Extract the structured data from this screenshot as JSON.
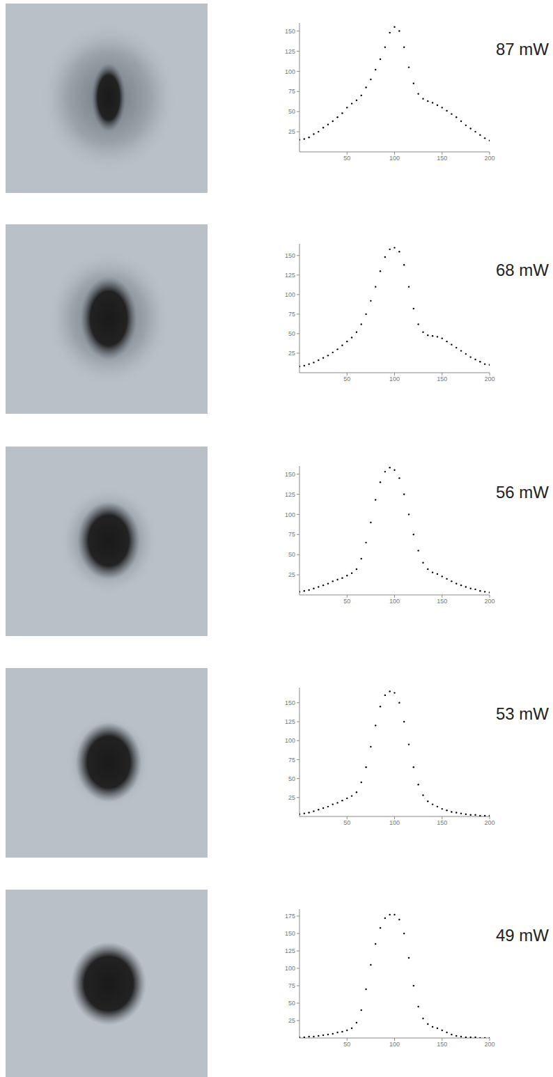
{
  "chart_data": [
    {
      "type": "scatter",
      "title": "87 mW",
      "xlim": [
        0,
        200
      ],
      "xticks": [
        50,
        100,
        150,
        200
      ],
      "ylim": [
        0,
        160
      ],
      "yticks": [
        25,
        50,
        75,
        100,
        125,
        150
      ],
      "grid": false,
      "color": "#000000",
      "marker": "dot",
      "x": [
        0,
        5,
        10,
        15,
        20,
        25,
        30,
        35,
        40,
        45,
        50,
        55,
        60,
        65,
        70,
        75,
        80,
        85,
        90,
        95,
        100,
        105,
        110,
        115,
        120,
        125,
        130,
        135,
        140,
        145,
        150,
        155,
        160,
        165,
        170,
        175,
        180,
        185,
        190,
        195,
        200
      ],
      "values": [
        15,
        16,
        18,
        22,
        25,
        30,
        34,
        38,
        43,
        48,
        55,
        60,
        64,
        70,
        80,
        90,
        102,
        115,
        130,
        148,
        155,
        150,
        130,
        105,
        85,
        72,
        66,
        63,
        61,
        58,
        55,
        51,
        47,
        43,
        38,
        33,
        29,
        25,
        21,
        17,
        14
      ]
    },
    {
      "type": "scatter",
      "title": "68 mW",
      "xlim": [
        0,
        200
      ],
      "xticks": [
        50,
        100,
        150,
        200
      ],
      "ylim": [
        0,
        165
      ],
      "yticks": [
        25,
        50,
        75,
        100,
        125,
        150
      ],
      "grid": false,
      "color": "#000000",
      "marker": "dot",
      "x": [
        0,
        5,
        10,
        15,
        20,
        25,
        30,
        35,
        40,
        45,
        50,
        55,
        60,
        65,
        70,
        75,
        80,
        85,
        90,
        95,
        100,
        105,
        110,
        115,
        120,
        125,
        130,
        135,
        140,
        145,
        150,
        155,
        160,
        165,
        170,
        175,
        180,
        185,
        190,
        195,
        200
      ],
      "values": [
        8,
        9,
        11,
        13,
        16,
        19,
        22,
        26,
        30,
        35,
        40,
        45,
        52,
        62,
        75,
        92,
        110,
        130,
        148,
        158,
        160,
        155,
        138,
        110,
        82,
        62,
        52,
        48,
        47,
        46,
        44,
        40,
        36,
        32,
        28,
        24,
        20,
        17,
        14,
        11,
        10
      ]
    },
    {
      "type": "scatter",
      "title": "56 mW",
      "xlim": [
        0,
        200
      ],
      "xticks": [
        50,
        100,
        150,
        200
      ],
      "ylim": [
        0,
        160
      ],
      "yticks": [
        25,
        50,
        75,
        100,
        125,
        150
      ],
      "grid": false,
      "color": "#000000",
      "marker": "dot",
      "x": [
        0,
        5,
        10,
        15,
        20,
        25,
        30,
        35,
        40,
        45,
        50,
        55,
        60,
        65,
        70,
        75,
        80,
        85,
        90,
        95,
        100,
        105,
        110,
        115,
        120,
        125,
        130,
        135,
        140,
        145,
        150,
        155,
        160,
        165,
        170,
        175,
        180,
        185,
        190,
        195,
        200
      ],
      "values": [
        4,
        5,
        6,
        8,
        10,
        12,
        14,
        17,
        19,
        21,
        24,
        27,
        32,
        45,
        65,
        90,
        118,
        140,
        153,
        158,
        155,
        145,
        125,
        100,
        75,
        55,
        40,
        32,
        28,
        26,
        23,
        20,
        17,
        14,
        12,
        10,
        8,
        7,
        5,
        4,
        3
      ]
    },
    {
      "type": "scatter",
      "title": "53 mW",
      "xlim": [
        0,
        200
      ],
      "xticks": [
        50,
        100,
        150,
        200
      ],
      "ylim": [
        0,
        170
      ],
      "yticks": [
        25,
        50,
        75,
        100,
        125,
        150
      ],
      "grid": false,
      "color": "#000000",
      "marker": "dot",
      "x": [
        0,
        5,
        10,
        15,
        20,
        25,
        30,
        35,
        40,
        45,
        50,
        55,
        60,
        65,
        70,
        75,
        80,
        85,
        90,
        95,
        100,
        105,
        110,
        115,
        120,
        125,
        130,
        135,
        140,
        145,
        150,
        155,
        160,
        165,
        170,
        175,
        180,
        185,
        190,
        195,
        200
      ],
      "values": [
        3,
        4,
        5,
        7,
        9,
        11,
        13,
        16,
        18,
        21,
        24,
        27,
        32,
        45,
        65,
        92,
        120,
        145,
        160,
        165,
        163,
        150,
        125,
        95,
        65,
        42,
        28,
        20,
        16,
        13,
        10,
        8,
        6,
        5,
        4,
        3,
        2,
        2,
        1,
        1,
        1
      ]
    },
    {
      "type": "scatter",
      "title": "49 mW",
      "xlim": [
        0,
        200
      ],
      "xticks": [
        50,
        100,
        150,
        200
      ],
      "ylim": [
        0,
        185
      ],
      "yticks": [
        25,
        50,
        75,
        100,
        125,
        150,
        175
      ],
      "grid": false,
      "color": "#000000",
      "marker": "dot",
      "x": [
        0,
        5,
        10,
        15,
        20,
        25,
        30,
        35,
        40,
        45,
        50,
        55,
        60,
        65,
        70,
        75,
        80,
        85,
        90,
        95,
        100,
        105,
        110,
        115,
        120,
        125,
        130,
        135,
        140,
        145,
        150,
        155,
        160,
        165,
        170,
        175,
        180,
        185,
        190,
        195,
        200
      ],
      "values": [
        1,
        1,
        2,
        2,
        3,
        4,
        5,
        6,
        8,
        9,
        11,
        14,
        22,
        40,
        70,
        105,
        135,
        158,
        172,
        177,
        177,
        170,
        150,
        115,
        75,
        45,
        28,
        20,
        16,
        14,
        11,
        8,
        5,
        3,
        2,
        1,
        1,
        1,
        0,
        0,
        0
      ]
    }
  ]
}
